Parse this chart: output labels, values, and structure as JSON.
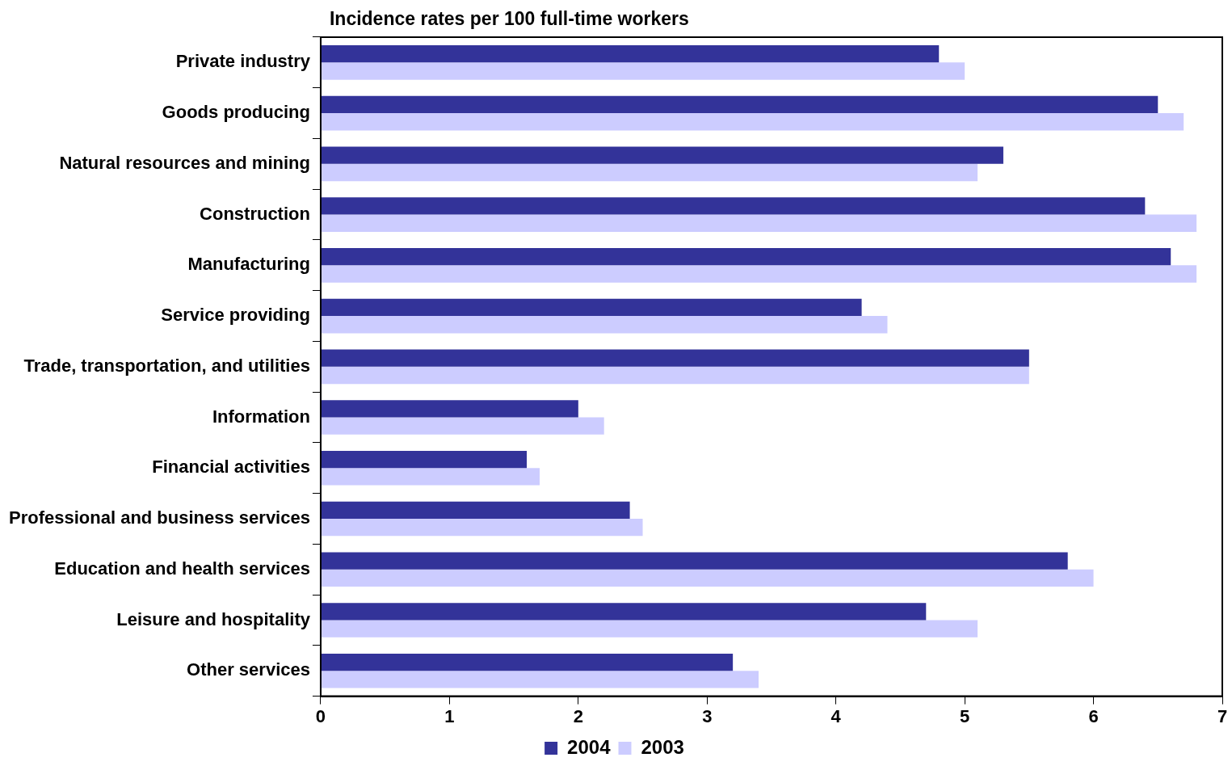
{
  "chart_data": {
    "type": "bar",
    "orientation": "horizontal",
    "title": "Incidence rates per 100 full-time workers",
    "categories": [
      "Private industry",
      "Goods producing",
      "Natural resources and mining",
      "Construction",
      "Manufacturing",
      "Service providing",
      "Trade, transportation, and utilities",
      "Information",
      "Financial activities",
      "Professional and business services",
      "Education and health services",
      "Leisure and hospitality",
      "Other services"
    ],
    "series": [
      {
        "name": "2004",
        "color": "#333399",
        "values": [
          4.8,
          6.5,
          5.3,
          6.4,
          6.6,
          4.2,
          5.5,
          2.0,
          1.6,
          2.4,
          5.8,
          4.7,
          3.2
        ]
      },
      {
        "name": "2003",
        "color": "#ccccff",
        "values": [
          5.0,
          6.7,
          5.1,
          6.8,
          6.8,
          4.4,
          5.5,
          2.2,
          1.7,
          2.5,
          6.0,
          5.1,
          3.4
        ]
      }
    ],
    "xlim": [
      0,
      7
    ],
    "xticks": [
      0,
      1,
      2,
      3,
      4,
      5,
      6,
      7
    ],
    "grid": false,
    "legend": "bottom"
  }
}
